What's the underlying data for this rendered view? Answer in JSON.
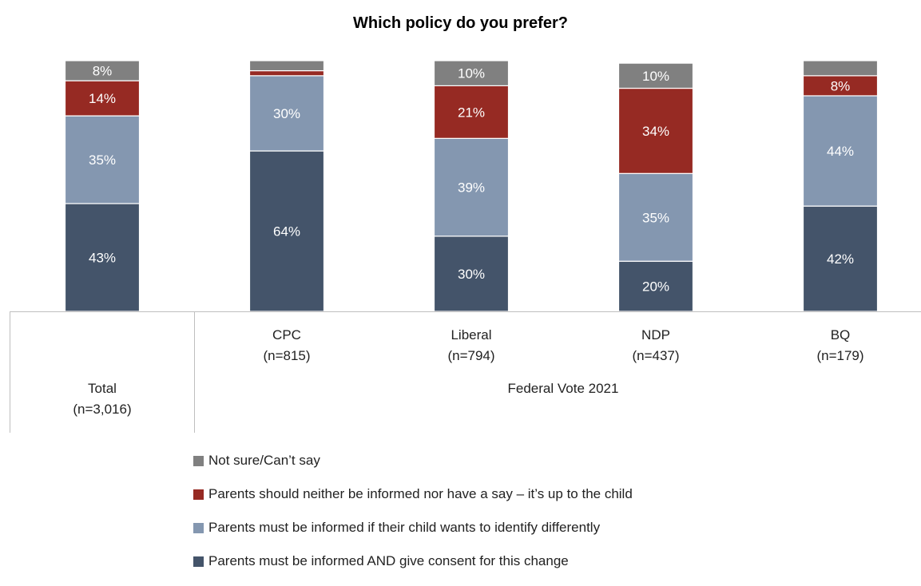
{
  "chart_data": {
    "type": "bar",
    "stacked": true,
    "title": "Which policy do you prefer?",
    "categories": [
      "Total\n(n=3,016)",
      "CPC\n(n=815)",
      "Liberal\n(n=794)",
      "NDP\n(n=437)",
      "BQ\n(n=179)"
    ],
    "group_label": "Federal Vote 2021",
    "ylim": [
      0,
      100
    ],
    "legend_position": "bottom",
    "series": [
      {
        "name": "Parents must be informed AND give consent for this change",
        "color": "#44546a",
        "values": [
          43,
          64,
          30,
          20,
          42
        ],
        "labels": [
          "43%",
          "64%",
          "30%",
          "20%",
          "42%"
        ]
      },
      {
        "name": "Parents must be informed if their child wants to identify differently",
        "color": "#8497b0",
        "values": [
          35,
          30,
          39,
          35,
          44
        ],
        "labels": [
          "35%",
          "30%",
          "39%",
          "35%",
          "44%"
        ]
      },
      {
        "name": "Parents should neither be informed nor have a say – it’s up to the child",
        "color": "#962a23",
        "values": [
          14,
          2,
          21,
          34,
          8
        ],
        "labels": [
          "14%",
          "",
          "21%",
          "34%",
          "8%"
        ]
      },
      {
        "name": "Not sure/Can’t say",
        "color": "#808080",
        "values": [
          8,
          4,
          10,
          10,
          6
        ],
        "labels": [
          "8%",
          "",
          "10%",
          "10%",
          ""
        ]
      }
    ]
  }
}
